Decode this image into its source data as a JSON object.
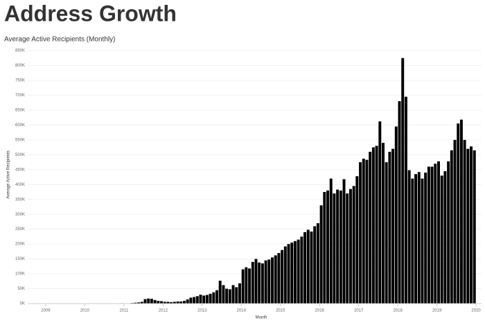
{
  "chart_data": {
    "type": "bar",
    "title": "Address Growth",
    "subtitle": "Average Active Recipients (Monthly)",
    "y_label": "Average Active Recipients",
    "x_label": "Month",
    "color": "#000000",
    "grid": true,
    "x": [
      2009.042,
      2009.125,
      2009.208,
      2009.292,
      2009.375,
      2009.458,
      2009.542,
      2009.625,
      2009.708,
      2009.792,
      2009.875,
      2009.958,
      2010.042,
      2010.125,
      2010.208,
      2010.292,
      2010.375,
      2010.458,
      2010.542,
      2010.625,
      2010.708,
      2010.792,
      2010.875,
      2010.958,
      2011.042,
      2011.125,
      2011.208,
      2011.292,
      2011.375,
      2011.458,
      2011.542,
      2011.625,
      2011.708,
      2011.792,
      2011.875,
      2011.958,
      2012.042,
      2012.125,
      2012.208,
      2012.292,
      2012.375,
      2012.458,
      2012.542,
      2012.625,
      2012.708,
      2012.792,
      2012.875,
      2012.958,
      2013.042,
      2013.125,
      2013.208,
      2013.292,
      2013.375,
      2013.458,
      2013.542,
      2013.625,
      2013.708,
      2013.792,
      2013.875,
      2013.958,
      2014.042,
      2014.125,
      2014.208,
      2014.292,
      2014.375,
      2014.458,
      2014.542,
      2014.625,
      2014.708,
      2014.792,
      2014.875,
      2014.958,
      2015.042,
      2015.125,
      2015.208,
      2015.292,
      2015.375,
      2015.458,
      2015.542,
      2015.625,
      2015.708,
      2015.792,
      2015.875,
      2015.958,
      2016.042,
      2016.125,
      2016.208,
      2016.292,
      2016.375,
      2016.458,
      2016.542,
      2016.625,
      2016.708,
      2016.792,
      2016.875,
      2016.958,
      2017.042,
      2017.125,
      2017.208,
      2017.292,
      2017.375,
      2017.458,
      2017.542,
      2017.625,
      2017.708,
      2017.792,
      2017.875,
      2017.958,
      2018.042,
      2018.125,
      2018.208,
      2018.292,
      2018.375,
      2018.458,
      2018.542,
      2018.625,
      2018.708,
      2018.792,
      2018.875,
      2018.958,
      2019.042,
      2019.125,
      2019.208,
      2019.292,
      2019.375,
      2019.458,
      2019.542,
      2019.625,
      2019.708,
      2019.792,
      2019.875,
      2019.958
    ],
    "values": [
      0.1,
      0.1,
      0.1,
      0.2,
      0.2,
      0.2,
      0.3,
      0.3,
      0.3,
      0.4,
      0.4,
      0.5,
      0.5,
      0.6,
      0.6,
      0.7,
      0.8,
      0.8,
      0.9,
      1,
      1,
      1.1,
      1.2,
      1.3,
      1,
      1,
      2,
      3,
      4,
      6,
      15,
      17,
      16,
      12,
      9,
      8,
      6,
      6,
      5,
      6,
      7,
      7,
      9,
      14,
      20,
      22,
      25,
      30,
      27,
      29,
      33,
      38,
      45,
      77,
      62,
      50,
      48,
      62,
      55,
      68,
      115,
      122,
      118,
      140,
      150,
      138,
      135,
      145,
      148,
      155,
      162,
      170,
      180,
      192,
      200,
      205,
      210,
      215,
      225,
      240,
      248,
      242,
      260,
      270,
      330,
      375,
      380,
      420,
      370,
      383,
      380,
      418,
      370,
      385,
      395,
      428,
      475,
      487,
      483,
      510,
      525,
      530,
      612,
      540,
      475,
      510,
      520,
      595,
      680,
      825,
      695,
      448,
      420,
      435,
      442,
      420,
      440,
      460,
      460,
      470,
      478,
      430,
      445,
      478,
      515,
      550,
      605,
      618,
      550,
      520,
      528,
      515
    ],
    "xlim": [
      2008.54,
      2020.14
    ],
    "xticks": [
      2009,
      2010,
      2011,
      2012,
      2013,
      2014,
      2015,
      2016,
      2017,
      2018,
      2019,
      2020
    ],
    "ylim": [
      0,
      850
    ],
    "yticks": [
      {
        "value": 0,
        "label": "0K"
      },
      {
        "value": 50,
        "label": "50K"
      },
      {
        "value": 100,
        "label": "100K"
      },
      {
        "value": 150,
        "label": "150K"
      },
      {
        "value": 200,
        "label": "200K"
      },
      {
        "value": 250,
        "label": "250K"
      },
      {
        "value": 300,
        "label": "300K"
      },
      {
        "value": 350,
        "label": "350K"
      },
      {
        "value": 400,
        "label": "400K"
      },
      {
        "value": 450,
        "label": "450K"
      },
      {
        "value": 500,
        "label": "500K"
      },
      {
        "value": 550,
        "label": "550K"
      },
      {
        "value": 600,
        "label": "600K"
      },
      {
        "value": 650,
        "label": "650K"
      },
      {
        "value": 700,
        "label": "700K"
      },
      {
        "value": 750,
        "label": "750K"
      },
      {
        "value": 800,
        "label": "800K"
      },
      {
        "value": 850,
        "label": "850K"
      }
    ]
  }
}
